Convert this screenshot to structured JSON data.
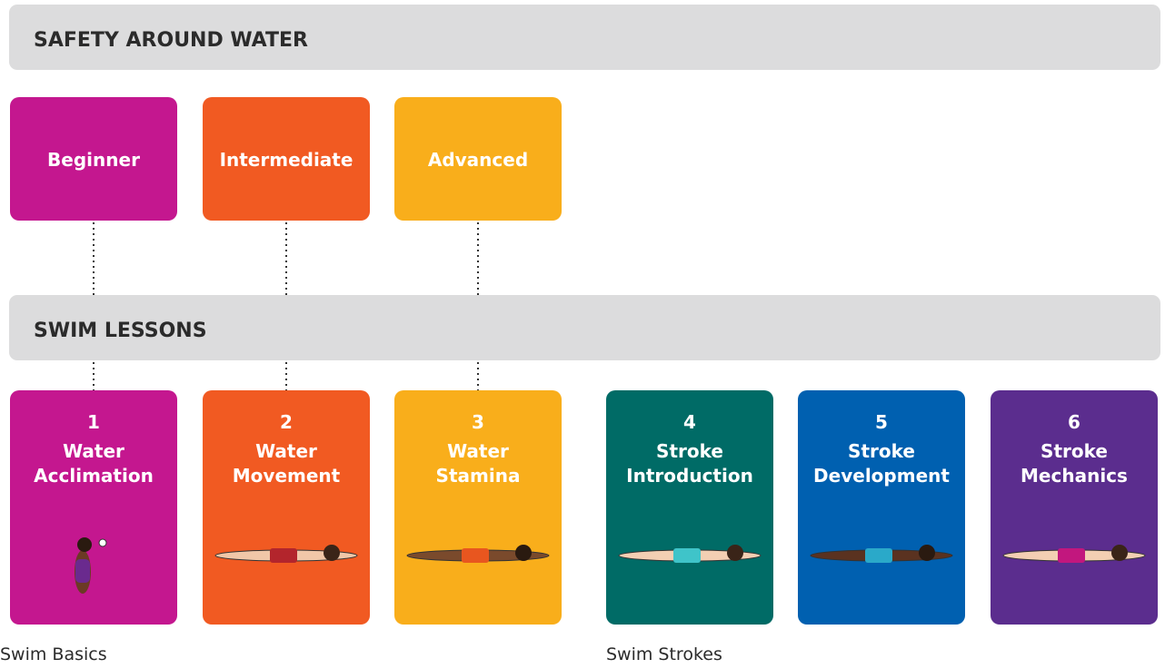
{
  "sections": [
    {
      "title": "SAFETY AROUND WATER"
    },
    {
      "title": "SWIM LESSONS"
    }
  ],
  "levels": [
    {
      "label": "Beginner",
      "color": "#c4178f"
    },
    {
      "label": "Intermediate",
      "color": "#f15a22"
    },
    {
      "label": "Advanced",
      "color": "#f9ae1b"
    }
  ],
  "lessons": [
    {
      "number": "1",
      "name": [
        "Water",
        "Acclimation"
      ],
      "color": "#c4178f"
    },
    {
      "number": "2",
      "name": [
        "Water",
        "Movement"
      ],
      "color": "#f15a22"
    },
    {
      "number": "3",
      "name": [
        "Water",
        "Stamina"
      ],
      "color": "#f9ae1b"
    },
    {
      "number": "4",
      "name": [
        "Stroke",
        "Introduction"
      ],
      "color": "#006b66"
    },
    {
      "number": "5",
      "name": [
        "Stroke",
        "Development"
      ],
      "color": "#0060b0"
    },
    {
      "number": "6",
      "name": [
        "Stroke",
        "Mechanics"
      ],
      "color": "#5b2d8e"
    }
  ],
  "captions": [
    "Swim Basics",
    "Swim Strokes"
  ]
}
